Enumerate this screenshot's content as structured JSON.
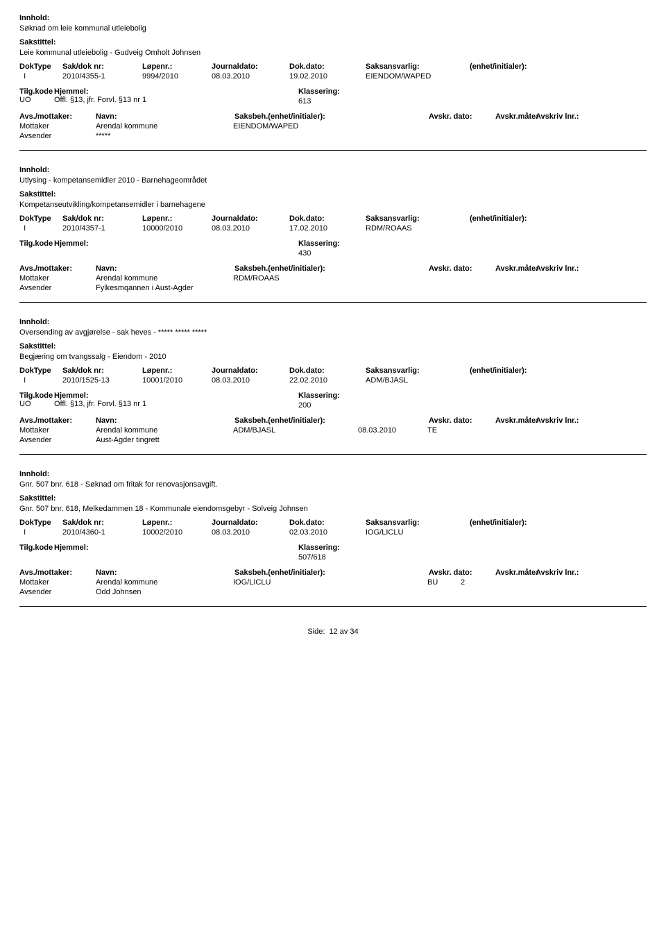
{
  "labels": {
    "innhold": "Innhold:",
    "sakstittel": "Sakstittel:",
    "doktype": "DokType",
    "sakdok": "Sak/dok nr:",
    "lopenr": "Løpenr.:",
    "journaldato": "Journaldato:",
    "dokdato": "Dok.dato:",
    "saksansvarlig": "Saksansvarlig:",
    "enhet": "(enhet/initialer):",
    "tilgkode": "Tilg.kode",
    "hjemmel": "Hjemmel:",
    "klassering": "Klassering:",
    "avsmottaker": "Avs./mottaker:",
    "navn": "Navn:",
    "saksbeh": "Saksbeh.(enhet/initialer):",
    "avskrdato": "Avskr. dato:",
    "avskrmate": "Avskr.måte:",
    "avskrlnr": "Avskriv lnr.:",
    "mottaker": "Mottaker",
    "avsender": "Avsender",
    "side": "Side:",
    "pagenum": "12 av  34"
  },
  "cases": [
    {
      "innhold": "Søknad om leie kommunal utleiebolig",
      "sakstittel": "Leie kommunal utleiebolig - Gudveig Omholt Johnsen",
      "doktype": "I",
      "sakdok": "2010/4355-1",
      "lopenr": "9994/2010",
      "journaldato": "08.03.2010",
      "dokdato": "19.02.2010",
      "saksansvarlig": "EIENDOM/WAPED",
      "tilgkode": "UO",
      "hjemmel_text": "Offl. §13, jfr. Forvl. §13 nr 1",
      "klassering": "613",
      "mottaker_navn": "Arendal kommune",
      "mottaker_saksbeh": "EIENDOM/WAPED",
      "mottaker_date": "",
      "mottaker_mate": "",
      "mottaker_lnr": "",
      "avsender_navn": "*****"
    },
    {
      "innhold": "Utlysing - kompetansemidler 2010 - Barnehageområdet",
      "sakstittel": "Kompetanseutvikling/kompetansemidler i barnehagene",
      "doktype": "I",
      "sakdok": "2010/4357-1",
      "lopenr": "10000/2010",
      "journaldato": "08.03.2010",
      "dokdato": "17.02.2010",
      "saksansvarlig": "RDM/ROAAS",
      "tilgkode": "",
      "hjemmel_text": "",
      "klassering": "430",
      "mottaker_navn": "Arendal kommune",
      "mottaker_saksbeh": "RDM/ROAAS",
      "mottaker_date": "",
      "mottaker_mate": "",
      "mottaker_lnr": "",
      "avsender_navn": "Fylkesmqannen i Aust-Agder"
    },
    {
      "innhold": "Oversending av avgjørelse - sak heves - ***** ***** *****",
      "sakstittel": "Begjæring om tvangssalg - Eiendom - 2010",
      "doktype": "I",
      "sakdok": "2010/1525-13",
      "lopenr": "10001/2010",
      "journaldato": "08.03.2010",
      "dokdato": "22.02.2010",
      "saksansvarlig": "ADM/BJASL",
      "tilgkode": "UO",
      "hjemmel_text": "Offl. §13, jfr. Forvl. §13 nr 1",
      "klassering": "200",
      "mottaker_navn": "Arendal kommune",
      "mottaker_saksbeh": "ADM/BJASL",
      "mottaker_date": "08.03.2010",
      "mottaker_mate": "TE",
      "mottaker_lnr": "",
      "avsender_navn": "Aust-Agder tingrett"
    },
    {
      "innhold": "Gnr. 507 bnr. 618 - Søknad om fritak for renovasjonsavgift.",
      "sakstittel": "Gnr. 507 bnr. 618, Melkedammen 18 - Kommunale eiendomsgebyr - Solveig Johnsen",
      "doktype": "I",
      "sakdok": "2010/4360-1",
      "lopenr": "10002/2010",
      "journaldato": "08.03.2010",
      "dokdato": "02.03.2010",
      "saksansvarlig": "IOG/LICLU",
      "tilgkode": "",
      "hjemmel_text": "",
      "klassering": "507/618",
      "mottaker_navn": "Arendal kommune",
      "mottaker_saksbeh": "IOG/LICLU",
      "mottaker_date": "",
      "mottaker_mate": "BU",
      "mottaker_lnr": "2",
      "avsender_navn": "Odd Johnsen"
    }
  ]
}
